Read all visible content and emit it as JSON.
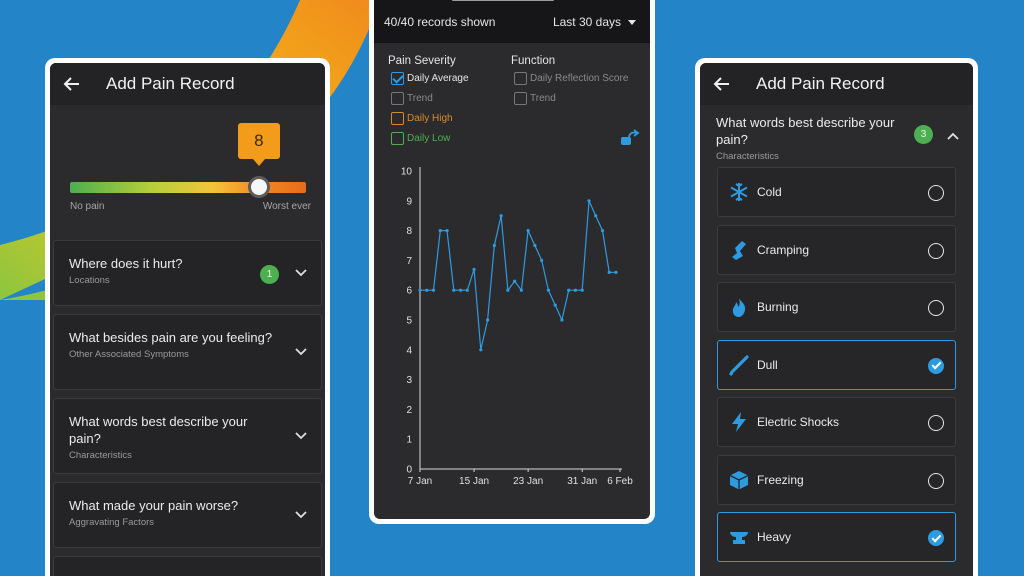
{
  "theme": {
    "background": "#2484c8",
    "accent": "#2e9be0",
    "badge": "#4caf50",
    "slider_bubble": "#f39c1c"
  },
  "left_phone": {
    "title": "Add Pain Record",
    "slider": {
      "value": "8",
      "level": 0.8,
      "min_label": "No pain",
      "max_label": "Worst ever"
    },
    "sections": [
      {
        "title": "Where does it hurt?",
        "subtitle": "Locations",
        "badge": "1"
      },
      {
        "title": "What besides pain are you feeling?",
        "subtitle": "Other Associated Symptoms",
        "badge": ""
      },
      {
        "title": "What words best describe your pain?",
        "subtitle": "Characteristics",
        "badge": ""
      },
      {
        "title": "What made your pain worse?",
        "subtitle": "Aggravating Factors",
        "badge": ""
      }
    ]
  },
  "middle_phone": {
    "records_shown": "40/40 records shown",
    "range": "Last 30 days",
    "legend": {
      "severity_title": "Pain Severity",
      "function_title": "Function",
      "severity_items": [
        {
          "label": "Daily Average",
          "checked": true,
          "color": "#2e9be0"
        },
        {
          "label": "Trend",
          "checked": false,
          "color": "#777777"
        },
        {
          "label": "Daily High",
          "checked": false,
          "color": "#d98a2a"
        },
        {
          "label": "Daily Low",
          "checked": false,
          "color": "#4caf50"
        }
      ],
      "function_items": [
        {
          "label": "Daily Reflection Score",
          "checked": false,
          "color": "#777777"
        },
        {
          "label": "Trend",
          "checked": false,
          "color": "#777777"
        }
      ]
    },
    "chart_data": {
      "type": "line",
      "x_labels": [
        "7 Jan",
        "15 Jan",
        "23 Jan",
        "31 Jan",
        "6 Feb"
      ],
      "y_ticks": [
        0,
        1,
        2,
        3,
        4,
        5,
        6,
        7,
        8,
        9,
        10
      ],
      "ylim": [
        0,
        10
      ],
      "grid": false,
      "series": [
        {
          "color": "#2e9be0",
          "x": [
            0,
            1,
            2,
            3,
            4,
            5,
            6,
            7,
            8,
            9,
            10,
            11,
            12,
            13,
            14,
            15,
            16,
            17,
            18,
            19,
            20,
            21,
            22,
            23,
            24,
            25,
            26,
            27,
            28,
            29
          ],
          "values": [
            6,
            6,
            6,
            8,
            8,
            6,
            6,
            6,
            6.7,
            4,
            5,
            7.5,
            8.5,
            6,
            6.3,
            6,
            8,
            7.5,
            7,
            6,
            5.5,
            5,
            6,
            6,
            6,
            9,
            8.5,
            8,
            6.6,
            6.6
          ]
        }
      ]
    }
  },
  "right_phone": {
    "title": "Add Pain Record",
    "section": {
      "title": "What words best describe your pain?",
      "subtitle": "Characteristics",
      "badge": "3"
    },
    "options": [
      {
        "label": "Cold",
        "icon": "snowflake-icon",
        "selected": false
      },
      {
        "label": "Cramping",
        "icon": "cramping-icon",
        "selected": false
      },
      {
        "label": "Burning",
        "icon": "flame-icon",
        "selected": false
      },
      {
        "label": "Dull",
        "icon": "dull-icon",
        "selected": true
      },
      {
        "label": "Electric Shocks",
        "icon": "lightning-icon",
        "selected": false
      },
      {
        "label": "Freezing",
        "icon": "ice-cube-icon",
        "selected": false
      },
      {
        "label": "Heavy",
        "icon": "anvil-icon",
        "selected": true
      }
    ]
  }
}
